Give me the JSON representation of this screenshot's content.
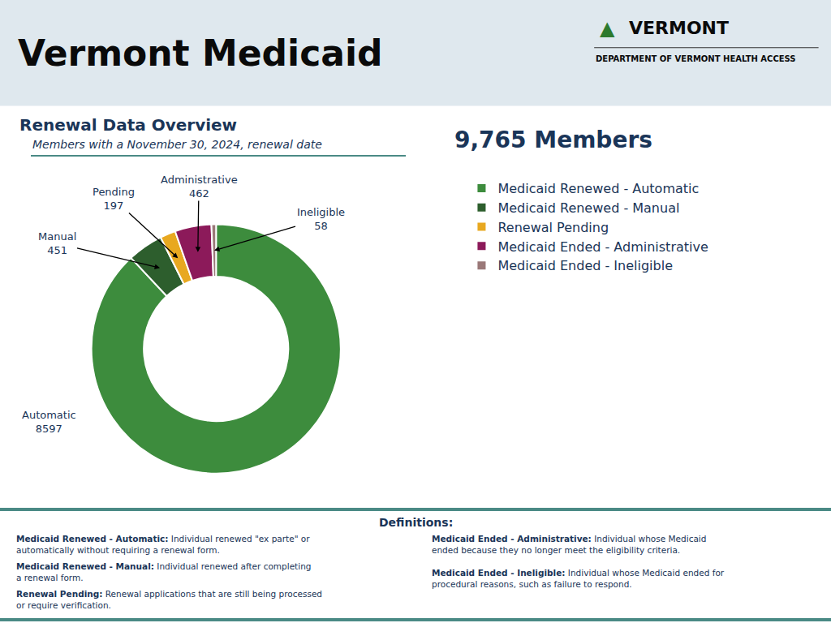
{
  "chart_data": {
    "type": "pie",
    "title": "Vermont Medicaid",
    "header_mark": "▲",
    "header_name": "VERMONT",
    "header_department": "DEPARTMENT OF VERMONT HEALTH ACCESS",
    "section_title": "Renewal Data Overview",
    "subtitle": "Members with a November 30, 2024, renewal date",
    "total_label": "9,765 Members",
    "categories": [
      "Medicaid Renewed - Automatic",
      "Medicaid Renewed - Manual",
      "Renewal Pending",
      "Medicaid Ended - Administrative",
      "Medicaid Ended - Ineligible"
    ],
    "values": [
      8597,
      451,
      197,
      462,
      58
    ],
    "colors": [
      "#3d8c3d",
      "#2d5e2d",
      "#e8a820",
      "#8c1a5a",
      "#9a7878"
    ],
    "data_labels": true,
    "annotations": [
      "Automatic",
      "Manual",
      "Pending",
      "Administrative",
      "Ineligible"
    ],
    "legend": "right",
    "definitions_title": "Definitions:",
    "definitions_left": [
      {
        "bold": "Medicaid Renewed - Automatic:",
        "text": " Individual renewed \"ex parte\" or\nautomatically without requiring a renewal form."
      },
      {
        "bold": "Medicaid Renewed - Manual:",
        "text": " Individual renewed after completing\na renewal form."
      },
      {
        "bold": "Renewal Pending:",
        "text": " Renewal applications that are still being processed\nor require verification."
      }
    ],
    "definitions_right": [
      {
        "bold": "Medicaid Ended - Administrative:",
        "text": " Individual whose Medicaid\nended because they no longer meet the eligibility criteria."
      },
      {
        "bold": "Medicaid Ended - Ineligible:",
        "text": " Individual whose Medicaid ended for\nprocedural reasons, such as failure to respond."
      }
    ]
  }
}
